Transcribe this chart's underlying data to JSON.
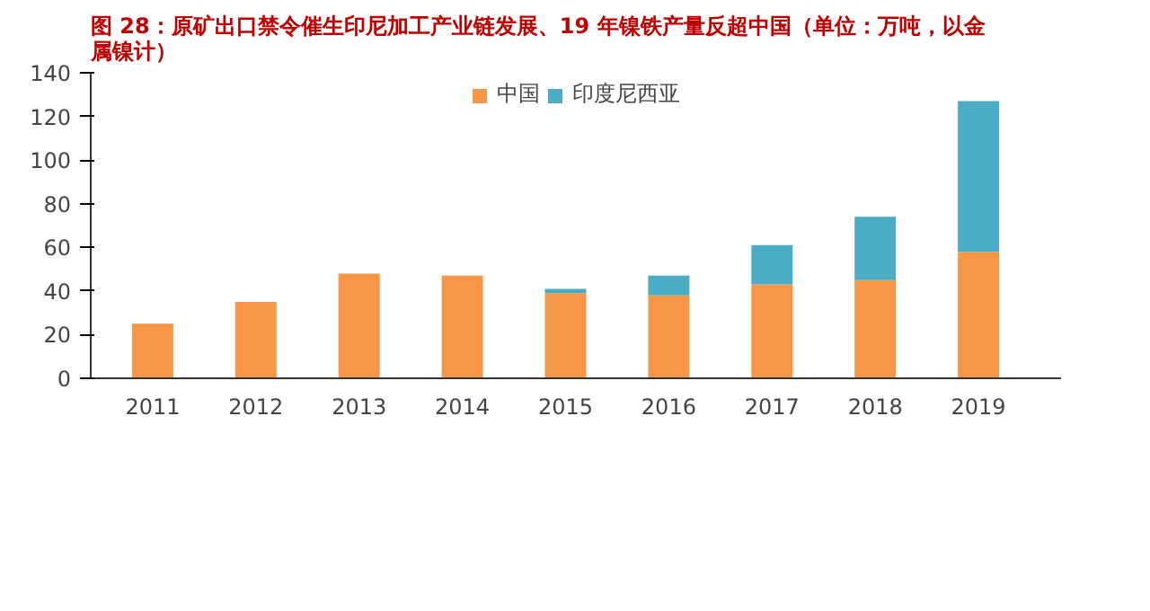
{
  "chart_data": {
    "type": "bar",
    "stacked": true,
    "title": "图 28：原矿出口禁令催生印尼加工产业链发展、19 年镍铁产量反超中国（单位：万吨，以金属镍计）",
    "categories": [
      "2011",
      "2012",
      "2013",
      "2014",
      "2015",
      "2016",
      "2017",
      "2018",
      "2019"
    ],
    "series": [
      {
        "name": "中国",
        "color": "#f79646",
        "values": [
          25,
          35,
          48,
          47,
          39,
          38,
          43,
          45,
          58
        ]
      },
      {
        "name": "印度尼西亚",
        "color": "#4bacc6",
        "values": [
          null,
          null,
          null,
          null,
          2,
          9,
          18,
          29,
          69
        ]
      }
    ],
    "ylim": [
      0,
      140
    ],
    "yticks": [
      0,
      20,
      40,
      60,
      80,
      100,
      120,
      140
    ],
    "grid": false,
    "legend": "top"
  }
}
